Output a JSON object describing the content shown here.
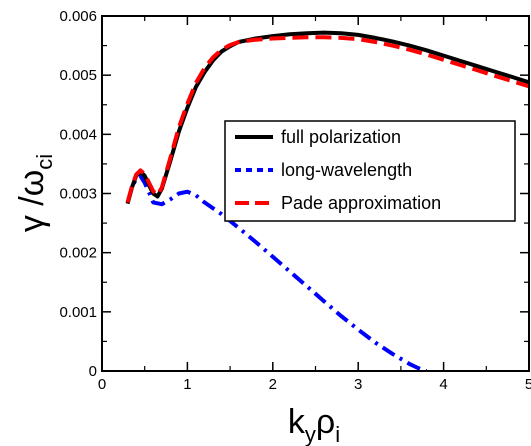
{
  "chart_data": {
    "type": "line",
    "xlabel": {
      "main": "k",
      "sub1": "y",
      "mid": "ρ",
      "sub2": "i"
    },
    "ylabel": {
      "main": "γ /ω",
      "sub": "ci"
    },
    "xlim": [
      0,
      5
    ],
    "ylim": [
      0,
      0.006
    ],
    "x_ticks": [
      0,
      1,
      2,
      3,
      4,
      5
    ],
    "x_tick_labels": [
      "0",
      "1",
      "2",
      "3",
      "4",
      "5"
    ],
    "y_ticks": [
      0,
      0.001,
      0.002,
      0.003,
      0.004,
      0.005,
      0.006
    ],
    "y_tick_labels": [
      "0",
      "0.001",
      "0.002",
      "0.003",
      "0.004",
      "0.005",
      "0.006"
    ],
    "legend_position": "right",
    "series": [
      {
        "name": "full polarization",
        "color": "#000000",
        "style": "solid",
        "x": [
          0.3,
          0.35,
          0.4,
          0.45,
          0.5,
          0.55,
          0.6,
          0.65,
          0.7,
          0.8,
          0.9,
          1.0,
          1.1,
          1.2,
          1.3,
          1.4,
          1.5,
          1.6,
          1.8,
          2.0,
          2.2,
          2.4,
          2.6,
          2.8,
          3.0,
          3.2,
          3.4,
          3.6,
          3.8,
          4.0,
          4.2,
          4.4,
          4.6,
          4.8,
          5.0
        ],
        "y": [
          0.00283,
          0.0031,
          0.0033,
          0.00337,
          0.0033,
          0.00314,
          0.003,
          0.00295,
          0.00308,
          0.00355,
          0.00405,
          0.00445,
          0.0048,
          0.00505,
          0.00525,
          0.0054,
          0.00549,
          0.00556,
          0.00562,
          0.00566,
          0.00569,
          0.00571,
          0.00572,
          0.00571,
          0.00568,
          0.00563,
          0.00557,
          0.0055,
          0.00542,
          0.00533,
          0.00524,
          0.00515,
          0.00506,
          0.00497,
          0.00488
        ]
      },
      {
        "name": "long-wavelength",
        "color": "#0000ff",
        "style": "dash-dot",
        "x": [
          0.3,
          0.35,
          0.4,
          0.45,
          0.5,
          0.55,
          0.6,
          0.7,
          0.8,
          0.9,
          1.0,
          1.1,
          1.2,
          1.4,
          1.6,
          1.8,
          2.0,
          2.2,
          2.4,
          2.6,
          2.8,
          3.0,
          3.2,
          3.4,
          3.6,
          3.7,
          3.8
        ],
        "y": [
          0.00285,
          0.0031,
          0.00325,
          0.0033,
          0.00318,
          0.00302,
          0.00285,
          0.00282,
          0.0029,
          0.003,
          0.00303,
          0.00297,
          0.00285,
          0.00265,
          0.00242,
          0.00218,
          0.00193,
          0.00168,
          0.00143,
          0.00118,
          0.00093,
          0.0007,
          0.00048,
          0.00029,
          0.00012,
          5e-05,
          0.0
        ]
      },
      {
        "name": "Pade approximation",
        "color": "#ff0000",
        "style": "dashed",
        "x": [
          0.3,
          0.35,
          0.4,
          0.45,
          0.5,
          0.55,
          0.6,
          0.65,
          0.7,
          0.8,
          0.9,
          1.0,
          1.1,
          1.2,
          1.3,
          1.4,
          1.5,
          1.6,
          1.8,
          2.0,
          2.2,
          2.4,
          2.6,
          2.8,
          3.0,
          3.2,
          3.4,
          3.6,
          3.8,
          4.0,
          4.2,
          4.4,
          4.6,
          4.8,
          5.0
        ],
        "y": [
          0.00285,
          0.00312,
          0.00332,
          0.00339,
          0.00333,
          0.00318,
          0.00304,
          0.00298,
          0.0031,
          0.0036,
          0.00412,
          0.00452,
          0.00487,
          0.00512,
          0.0053,
          0.00543,
          0.00551,
          0.00556,
          0.0056,
          0.00562,
          0.00563,
          0.00564,
          0.00564,
          0.00563,
          0.00561,
          0.00556,
          0.0055,
          0.00543,
          0.00535,
          0.00526,
          0.00517,
          0.00508,
          0.00499,
          0.0049,
          0.00481
        ]
      }
    ]
  }
}
